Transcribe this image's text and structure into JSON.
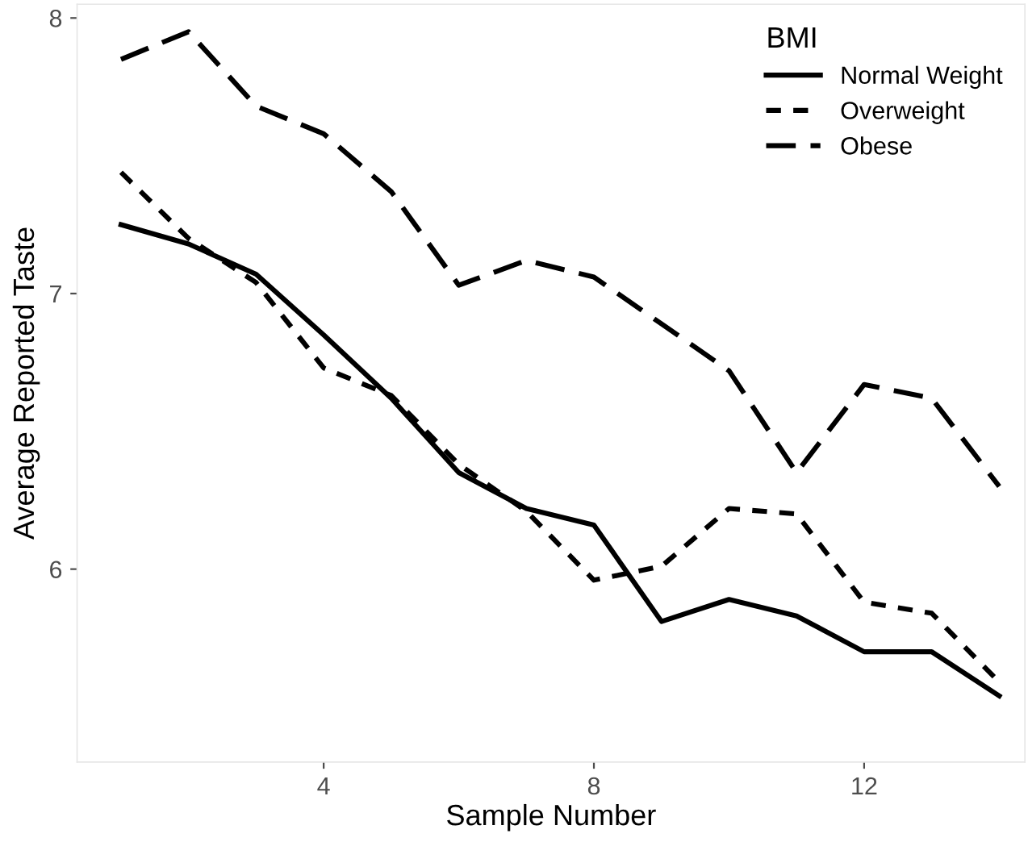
{
  "chart_data": {
    "type": "line",
    "xlabel": "Sample Number",
    "ylabel": "Average Reported Taste",
    "legend_title": "BMI",
    "x": [
      1,
      2,
      3,
      4,
      5,
      6,
      7,
      8,
      9,
      10,
      11,
      12,
      13,
      14
    ],
    "series": [
      {
        "name": "Normal Weight",
        "color": "#000000",
        "line_style": "solid",
        "values": [
          7.25,
          7.18,
          7.07,
          6.85,
          6.62,
          6.35,
          6.22,
          6.16,
          5.81,
          5.89,
          5.83,
          5.7,
          5.7,
          5.54
        ]
      },
      {
        "name": "Overweight",
        "color": "#000000",
        "line_style": "dotted",
        "values": [
          7.44,
          7.2,
          7.04,
          6.73,
          6.63,
          6.38,
          6.21,
          5.96,
          6.01,
          6.22,
          6.2,
          5.88,
          5.84,
          5.59
        ]
      },
      {
        "name": "Obese",
        "color": "#000000",
        "line_style": "dashed",
        "values": [
          7.85,
          7.95,
          7.68,
          7.58,
          7.37,
          7.03,
          7.12,
          7.06,
          6.89,
          6.72,
          6.35,
          6.67,
          6.62,
          6.3
        ]
      }
    ],
    "xlim": [
      0.35,
      14.38
    ],
    "ylim": [
      5.3,
      8.05
    ],
    "xticks": [
      4,
      8,
      12
    ],
    "yticks": [
      6,
      7,
      8
    ],
    "grid": false,
    "legend": "top right",
    "marker": "none"
  }
}
